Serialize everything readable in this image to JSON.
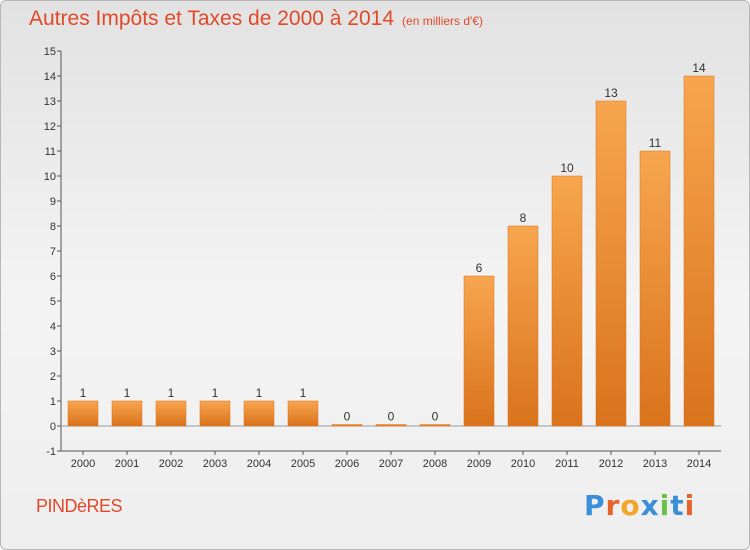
{
  "title": "Autres Impôts et Taxes de 2000 à 2014",
  "subtitle": "(en milliers d'€)",
  "location": "PINDèRES",
  "brand": "Proxiti",
  "colors": {
    "bar_light": "#f7a64f",
    "bar_dark": "#d9731c",
    "title": "#e04a2a",
    "brand_letters": [
      "#3a8fd8",
      "#e8622c",
      "#f2a526",
      "#3a8fd8",
      "#6cc04a",
      "#3a8fd8",
      "#e8622c"
    ]
  },
  "chart_data": {
    "type": "bar",
    "categories": [
      "2000",
      "2001",
      "2002",
      "2003",
      "2004",
      "2005",
      "2006",
      "2007",
      "2008",
      "2009",
      "2010",
      "2011",
      "2012",
      "2013",
      "2014"
    ],
    "values": [
      1,
      1,
      1,
      1,
      1,
      1,
      0,
      0,
      0,
      6,
      8,
      10,
      13,
      11,
      14
    ],
    "data_labels": [
      "1",
      "1",
      "1",
      "1",
      "1",
      "1",
      "0",
      "0",
      "0",
      "6",
      "8",
      "10",
      "13",
      "11",
      "14"
    ],
    "ylim": [
      -1,
      15
    ],
    "yticks": [
      "-1",
      "0",
      "1",
      "2",
      "3",
      "4",
      "5",
      "6",
      "7",
      "8",
      "9",
      "10",
      "11",
      "12",
      "13",
      "14",
      "15"
    ],
    "grid": false,
    "legend": "none"
  }
}
